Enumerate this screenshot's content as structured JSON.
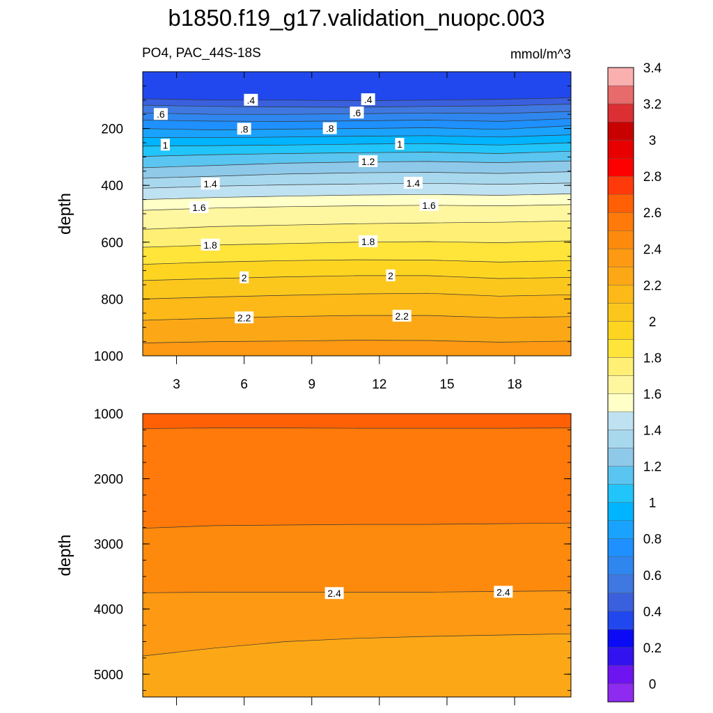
{
  "chart_data": {
    "type": "contour",
    "title": "b1850.f19_g17.validation_nuopc.003",
    "subtitle_left": "PO4, PAC_44S-18S",
    "units": "mmol/m^3",
    "x": {
      "ticks": [
        3,
        6,
        9,
        12,
        15,
        18
      ],
      "tick_labels": [
        "3",
        "6",
        "9",
        "12",
        "15",
        "18"
      ],
      "range": [
        1.5,
        20.5
      ]
    },
    "panels": [
      {
        "name": "upper",
        "ylabel": "depth",
        "ylim": [
          1000,
          0
        ],
        "yticks": [
          200,
          400,
          600,
          800,
          1000
        ],
        "ytick_labels": [
          "200",
          "400",
          "600",
          "800",
          "1000"
        ],
        "isolines": [
          {
            "level": 0.4,
            "depth": [
              95,
              100,
              100,
              102,
              100,
              97,
              92
            ]
          },
          {
            "level": 0.5,
            "depth": [
              118,
              122,
              124,
              125,
              122,
              120,
              114
            ]
          },
          {
            "level": 0.6,
            "depth": [
              145,
              150,
              150,
              148,
              145,
              147,
              140
            ]
          },
          {
            "level": 0.7,
            "depth": [
              170,
              174,
              175,
              173,
              170,
              175,
              165
            ]
          },
          {
            "level": 0.8,
            "depth": [
              200,
              205,
              202,
              200,
              197,
              203,
              190
            ]
          },
          {
            "level": 0.9,
            "depth": [
              232,
              232,
              230,
              227,
              225,
              230,
              222
            ]
          },
          {
            "level": 1.0,
            "depth": [
              262,
              260,
              258,
              255,
              253,
              258,
              250
            ]
          },
          {
            "level": 1.1,
            "depth": [
              298,
              292,
              288,
              285,
              283,
              288,
              280
            ]
          },
          {
            "level": 1.2,
            "depth": [
              338,
              330,
              322,
              318,
              316,
              320,
              314
            ]
          },
          {
            "level": 1.3,
            "depth": [
              375,
              368,
              360,
              356,
              354,
              358,
              352
            ]
          },
          {
            "level": 1.4,
            "depth": [
              410,
              403,
              398,
              395,
              393,
              396,
              392
            ]
          },
          {
            "level": 1.5,
            "depth": [
              450,
              443,
              438,
              434,
              432,
              435,
              430
            ]
          },
          {
            "level": 1.6,
            "depth": [
              488,
              480,
              475,
              472,
              470,
              472,
              468
            ]
          },
          {
            "level": 1.7,
            "depth": [
              555,
              545,
              540,
              535,
              532,
              530,
              525
            ]
          },
          {
            "level": 1.8,
            "depth": [
              618,
              610,
              605,
              600,
              598,
              602,
              595
            ]
          },
          {
            "level": 1.9,
            "depth": [
              678,
              670,
              665,
              662,
              663,
              670,
              665
            ]
          },
          {
            "level": 2.0,
            "depth": [
              735,
              728,
              722,
              718,
              718,
              728,
              724
            ]
          },
          {
            "level": 2.1,
            "depth": [
              800,
              793,
              787,
              782,
              780,
              790,
              785
            ]
          },
          {
            "level": 2.2,
            "depth": [
              875,
              868,
              862,
              858,
              858,
              866,
              862
            ]
          },
          {
            "level": 2.3,
            "depth": [
              955,
              950,
              948,
              945,
              946,
              952,
              948
            ]
          }
        ],
        "line_labels": [
          {
            "text": ".4",
            "x": 6.3,
            "depth": 100
          },
          {
            "text": ".4",
            "x": 11.5,
            "depth": 98
          },
          {
            "text": ".6",
            "x": 2.3,
            "depth": 150
          },
          {
            "text": ".6",
            "x": 11.0,
            "depth": 145
          },
          {
            "text": ".8",
            "x": 6.0,
            "depth": 202
          },
          {
            "text": ".8",
            "x": 9.8,
            "depth": 200
          },
          {
            "text": "1",
            "x": 2.5,
            "depth": 258
          },
          {
            "text": "1",
            "x": 12.9,
            "depth": 255
          },
          {
            "text": "1.2",
            "x": 11.5,
            "depth": 316
          },
          {
            "text": "1.4",
            "x": 4.5,
            "depth": 395
          },
          {
            "text": "1.4",
            "x": 13.5,
            "depth": 392
          },
          {
            "text": "1.6",
            "x": 4.0,
            "depth": 478
          },
          {
            "text": "1.6",
            "x": 14.2,
            "depth": 470
          },
          {
            "text": "1.8",
            "x": 4.5,
            "depth": 610
          },
          {
            "text": "1.8",
            "x": 11.5,
            "depth": 598
          },
          {
            "text": "2",
            "x": 6.0,
            "depth": 725
          },
          {
            "text": "2",
            "x": 12.5,
            "depth": 718
          },
          {
            "text": "2.2",
            "x": 6.0,
            "depth": 866
          },
          {
            "text": "2.2",
            "x": 13.0,
            "depth": 860
          }
        ]
      },
      {
        "name": "lower",
        "ylabel": "depth",
        "ylim": [
          5350,
          1000
        ],
        "yticks": [
          1000,
          2000,
          3000,
          4000,
          5000
        ],
        "ytick_labels": [
          "1000",
          "2000",
          "3000",
          "4000",
          "5000"
        ],
        "isolines": [
          {
            "level": 2.6,
            "depth": [
              1230,
              1220,
              1220,
              1225,
              1225,
              1225,
              1220
            ]
          },
          {
            "level": 2.5,
            "depth": [
              2760,
              2720,
              2710,
              2700,
              2700,
              2690,
              2680
            ]
          },
          {
            "level": 2.4,
            "depth": [
              3750,
              3740,
              3740,
              3740,
              3740,
              3730,
              3720
            ]
          },
          {
            "level": 2.3,
            "depth": [
              4720,
              4600,
              4500,
              4450,
              4420,
              4400,
              4380
            ]
          }
        ],
        "line_labels": [
          {
            "text": "2.4",
            "x": 10.0,
            "depth": 3760
          },
          {
            "text": "2.4",
            "x": 17.5,
            "depth": 3740
          }
        ]
      }
    ],
    "colorbar": {
      "colors": [
        "#8f2af0",
        "#6e14f0",
        "#3312f0",
        "#0a0af5",
        "#2048ee",
        "#3a60de",
        "#3f78e0",
        "#2f86ee",
        "#1e90ff",
        "#1aa2ff",
        "#00b4ff",
        "#21c5f9",
        "#5ac5f0",
        "#8ec9ea",
        "#a8d8ee",
        "#bfe2f2",
        "#ffffc8",
        "#fff6a0",
        "#fff075",
        "#ffe43a",
        "#fdd521",
        "#fcc71d",
        "#fcb918",
        "#fca816",
        "#fd9912",
        "#fe8a0d",
        "#ff7a0a",
        "#ff6005",
        "#ff3a0a",
        "#ff0000",
        "#e80000",
        "#c80000",
        "#dc2f33",
        "#e86b6b",
        "#fbb0b0"
      ],
      "labels": [
        "0",
        "0.2",
        "0.4",
        "0.6",
        "0.8",
        "1",
        "1.2",
        "1.4",
        "1.6",
        "1.8",
        "2",
        "2.2",
        "2.4",
        "2.6",
        "2.8",
        "3",
        "3.2",
        "3.4"
      ]
    }
  }
}
